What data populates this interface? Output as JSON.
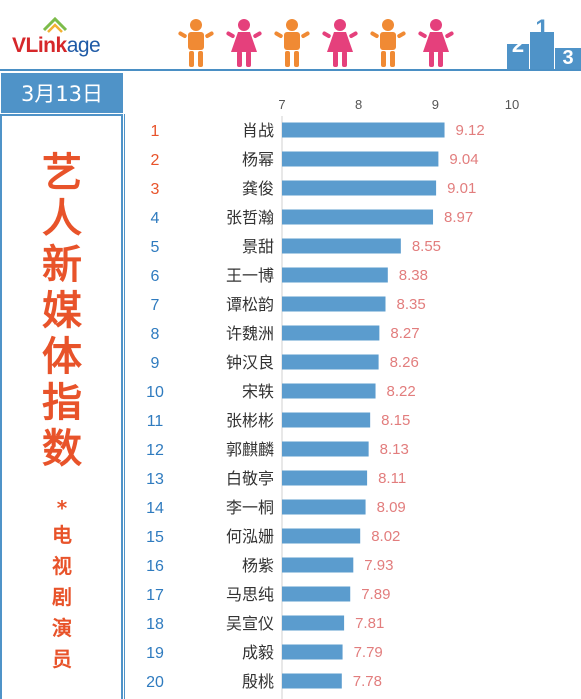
{
  "brand": {
    "logo_main": "VLink",
    "logo_suffix": "age"
  },
  "date": "3月13日",
  "title": "艺人新媒体指数",
  "title_mark": "*",
  "subtitle": "电视剧演员",
  "colors": {
    "bar": "#5b9cce",
    "value_label": "#e27d7d",
    "rank_top3": "#e8532a",
    "rank_rest": "#2f7bbf",
    "accent": "#4f93c8",
    "figure_orange": "#f08a34",
    "figure_pink": "#e5407c"
  },
  "icons": [
    "person-icon-orange",
    "person-icon-pink",
    "podium-icon"
  ],
  "chart_data": {
    "type": "bar",
    "orientation": "horizontal",
    "xlim": [
      7,
      10
    ],
    "xticks": [
      7,
      8,
      9,
      10
    ],
    "grid": false,
    "ranks": [
      1,
      2,
      3,
      4,
      5,
      6,
      7,
      8,
      9,
      10,
      11,
      12,
      13,
      14,
      15,
      16,
      17,
      18,
      19,
      20
    ],
    "categories": [
      "肖战",
      "杨幂",
      "龚俊",
      "张哲瀚",
      "景甜",
      "王一博",
      "谭松韵",
      "许魏洲",
      "钟汉良",
      "宋轶",
      "张彬彬",
      "郭麒麟",
      "白敬亭",
      "李一桐",
      "何泓姗",
      "杨紫",
      "马思纯",
      "吴宣仪",
      "成毅",
      "殷桃"
    ],
    "values": [
      9.12,
      9.04,
      9.01,
      8.97,
      8.55,
      8.38,
      8.35,
      8.27,
      8.26,
      8.22,
      8.15,
      8.13,
      8.11,
      8.09,
      8.02,
      7.93,
      7.89,
      7.81,
      7.79,
      7.78
    ]
  }
}
